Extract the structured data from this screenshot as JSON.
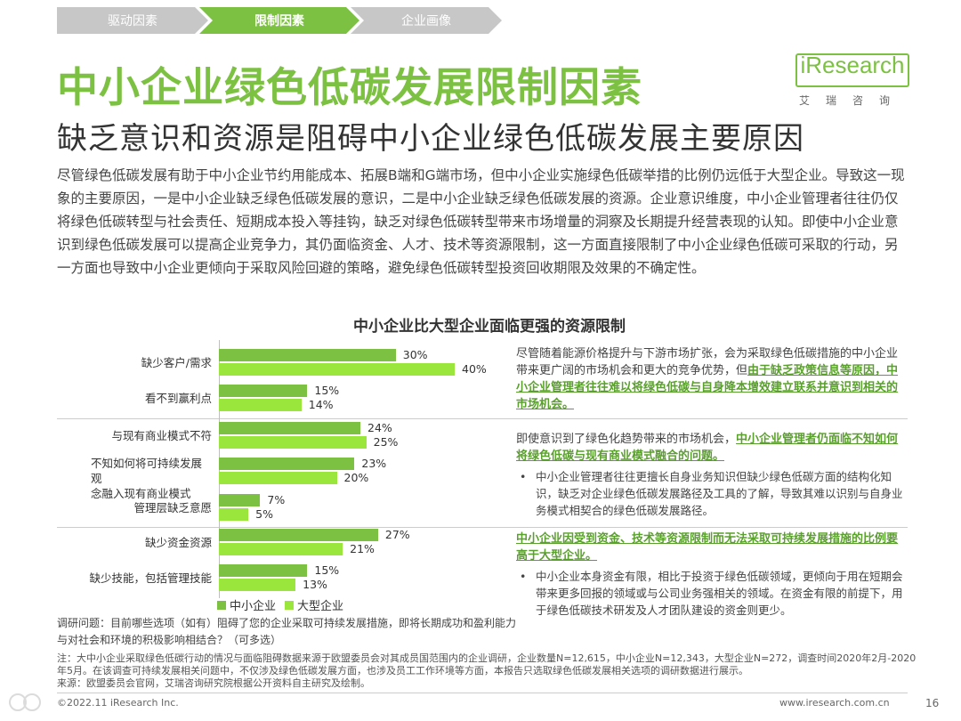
{
  "nav": {
    "items": [
      {
        "label": "驱动因素",
        "state": "inactive"
      },
      {
        "label": "限制因素",
        "state": "active"
      },
      {
        "label": "企业画像",
        "state": "inactive"
      }
    ]
  },
  "logo": {
    "text": "iResearch",
    "sub": "艾瑞咨询"
  },
  "title": "中小企业绿色低碳发展限制因素",
  "subtitle": "缺乏意识和资源是阻碍中小企业绿色低碳发展主要原因",
  "intro": "尽管绿色低碳发展有助于中小企业节约用能成本、拓展B端和G端市场，但中小企业实施绿色低碳举措的比例仍远低于大型企业。导致这一现象的主要原因，一是中小企业缺乏绿色低碳发展的意识，二是中小企业缺乏绿色低碳发展的资源。企业意识维度，中小企业管理者往往仍仅将绿色低碳转型与社会责任、短期成本投入等挂钩，缺乏对绿色低碳转型带来市场增量的洞察及长期提升经营表现的认知。即使中小企业意识到绿色低碳发展可以提高企业竞争力，其仍面临资金、人才、技术等资源限制，这一方面直接限制了中小企业绿色低碳可采取的行动，另一方面也导致中小企业更倾向于采取风险回避的策略，避免绿色低碳转型投资回收期限及效果的不确定性。",
  "chart_data": {
    "type": "bar",
    "orientation": "horizontal",
    "title": "中小企业比大型企业面临更强的资源限制",
    "categories": [
      "缺少客户/需求",
      "看不到赢利点",
      "与现有商业模式不符",
      "不知如何将可持续发展观念融入现有商业模式",
      "管理层缺乏意愿",
      "缺少资金资源",
      "缺少技能，包括管理技能"
    ],
    "category_lines": [
      [
        "缺少客户/需求"
      ],
      [
        "看不到赢利点"
      ],
      [
        "与现有商业模式不符"
      ],
      [
        "不知如何将可持续发展观",
        "念融入现有商业模式"
      ],
      [
        "管理层缺乏意愿"
      ],
      [
        "缺少资金资源"
      ],
      [
        "缺少技能，包括管理技能"
      ]
    ],
    "series": [
      {
        "name": "中小企业",
        "values": [
          30,
          15,
          24,
          23,
          7,
          27,
          15
        ],
        "labels": [
          "30%",
          "15%",
          "24%",
          "23%",
          "7%",
          "27%",
          "15%"
        ],
        "color": "#7dc142"
      },
      {
        "name": "大型企业",
        "values": [
          40,
          14,
          25,
          20,
          5,
          21,
          13
        ],
        "labels": [
          "40%",
          "14%",
          "25%",
          "20%",
          "5%",
          "21%",
          "13%"
        ],
        "color": "#9be63c"
      }
    ],
    "xlim": [
      0,
      40
    ],
    "legend_position": "bottom-left"
  },
  "insights": {
    "block1": {
      "text": "尽管随着能源价格提升与下游市场扩张，会为采取绿色低碳措施的中小企业带来更广阔的市场机会和更大的竞争优势，但",
      "highlight": "由于缺乏政策信息等原因，中小企业管理者往往难以将绿色低碳与自身降本增效建立联系并意识到相关的市场机会。"
    },
    "block2": {
      "text": "即使意识到了绿色化趋势带来的市场机会，",
      "highlight": "中小企业管理者仍面临不知如何将绿色低碳与现有商业模式融合的问题。",
      "bullet": "中小企业管理者往往更擅长自身业务知识但缺少绿色低碳方面的结构化知识，缺乏对企业绿色低碳发展路径及工具的了解，导致其难以识别与自身业务模式相契合的绿色低碳发展路径。"
    },
    "block3": {
      "highlight": "中小企业因受到资金、技术等资源限制而无法采取可持续发展措施的比例要高于大型企业。",
      "bullet": "中小企业本身资金有限，相比于投资于绿色低碳领域，更倾向于用在短期会带来更多回报的领域或与公司业务强相关的领域。在资金有限的前提下，用于绿色低碳技术研发及人才团队建设的资金则更少。"
    },
    "bullet_mark": "•"
  },
  "question": "调研问题：目前哪些选项（如有）阻碍了您的企业采取可持续发展措施，即将长期成功和盈利能力与对社会和环境的积极影响相结合？（可多选）",
  "note": "注：大中小企业采取绿色低碳行动的情况与面临阻碍数据来源于欧盟委员会对其成员国范围内的企业调研，企业数量N=12,615，中小企业N=12,343，大型企业N=272，调查时间2020年2月-2020年5月。在该调查可持续发展相关问题中，不仅涉及绿色低碳发展方面，也涉及员工工作环境等方面，本报告只选取绿色低碳发展相关选项的调研数据进行展示。",
  "source": "来源：欧盟委员会官网，艾瑞咨询研究院根据公开资料自主研究及绘制。",
  "footer": {
    "left": "©2022.11 iResearch Inc.",
    "url": "www.iresearch.com.cn",
    "page": "16"
  }
}
